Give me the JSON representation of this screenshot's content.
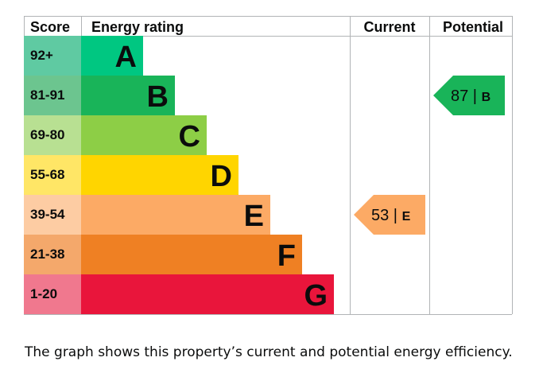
{
  "header": {
    "score": "Score",
    "energy_rating": "Energy rating",
    "current": "Current",
    "potential": "Potential"
  },
  "caption": "The graph shows this property’s current and potential energy efficiency.",
  "chart_data": {
    "type": "bar",
    "bands": [
      {
        "score": "92+",
        "letter": "A",
        "color": "#00c781",
        "score_color": "#5fcaa2"
      },
      {
        "score": "81-91",
        "letter": "B",
        "color": "#19b459",
        "score_color": "#6cc58f"
      },
      {
        "score": "69-80",
        "letter": "C",
        "color": "#8dce46",
        "score_color": "#b8e092"
      },
      {
        "score": "55-68",
        "letter": "D",
        "color": "#ffd500",
        "score_color": "#ffe666"
      },
      {
        "score": "39-54",
        "letter": "E",
        "color": "#fcaa65",
        "score_color": "#fdcca3"
      },
      {
        "score": "21-38",
        "letter": "F",
        "color": "#ef8023",
        "score_color": "#f4a86b"
      },
      {
        "score": "1-20",
        "letter": "G",
        "color": "#e9153b",
        "score_color": "#f0788e"
      }
    ],
    "current": {
      "value": 53,
      "letter": "E",
      "color": "#fcaa65"
    },
    "potential": {
      "value": 87,
      "letter": "B",
      "color": "#19b459"
    }
  }
}
